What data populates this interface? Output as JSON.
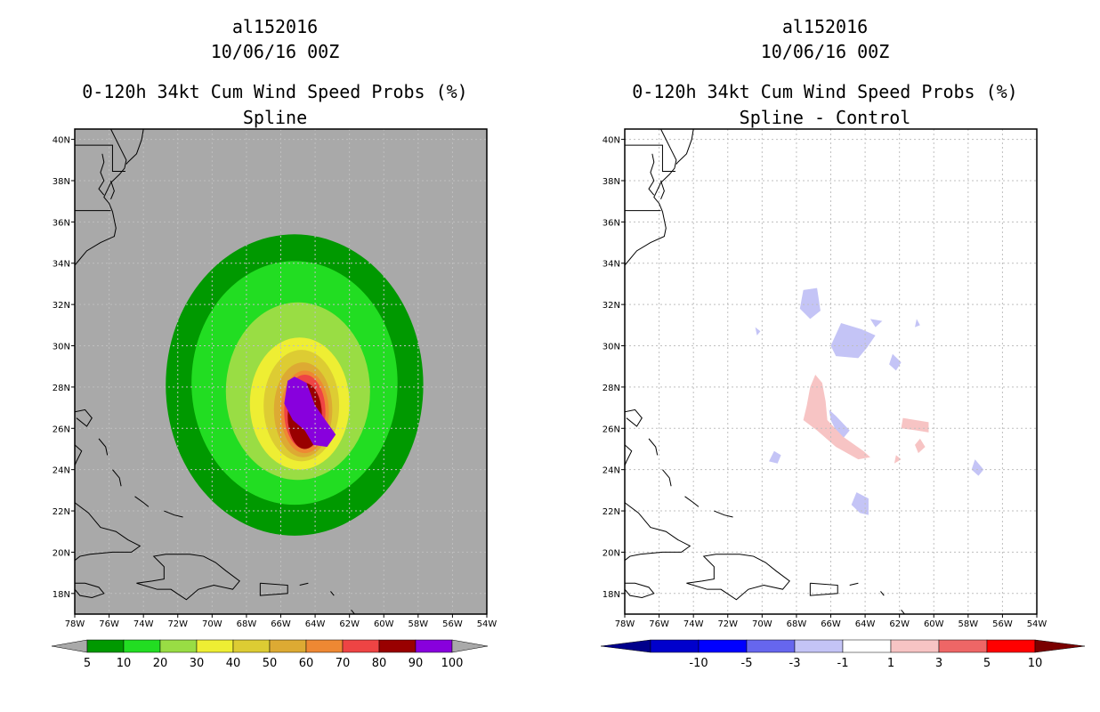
{
  "panels": [
    {
      "title_line1": "al152016",
      "title_line2": "10/06/16 00Z",
      "title_line3": "0-120h 34kt Cum Wind Speed Probs (%)",
      "title_line4": "Spline"
    },
    {
      "title_line1": "al152016",
      "title_line2": "10/06/16 00Z",
      "title_line3": "0-120h 34kt Cum Wind Speed Probs (%)",
      "title_line4": "Spline - Control"
    }
  ],
  "colors": {
    "background_ocean": "#a9a9a9",
    "grid": "#bfbfbf",
    "coast": "#000000"
  },
  "chart_data": [
    {
      "type": "heatmap",
      "name": "spline",
      "x_range": [
        -78,
        -54
      ],
      "y_range": [
        17,
        40.5
      ],
      "x_ticks": [
        "78W",
        "76W",
        "74W",
        "72W",
        "70W",
        "68W",
        "66W",
        "64W",
        "62W",
        "60W",
        "58W",
        "56W",
        "54W"
      ],
      "y_ticks": [
        "18N",
        "20N",
        "22N",
        "24N",
        "26N",
        "28N",
        "30N",
        "32N",
        "34N",
        "36N",
        "38N",
        "40N"
      ],
      "legend": {
        "labels": [
          "5",
          "10",
          "20",
          "30",
          "40",
          "50",
          "60",
          "70",
          "80",
          "90",
          "100"
        ],
        "colors": [
          "#009900",
          "#22dd22",
          "#99dd44",
          "#eeee33",
          "#ddcc33",
          "#ddaa33",
          "#ee8833",
          "#ee4444",
          "#990000",
          "#8800dd"
        ],
        "extend_color": "#a9a9a9"
      },
      "contours": [
        {
          "level": 5,
          "color": "#009900",
          "center": [
            -65.2,
            28.1
          ],
          "rx": 7.5,
          "ry": 7.3
        },
        {
          "level": 10,
          "color": "#22dd22",
          "center": [
            -65.2,
            28.2
          ],
          "rx": 6.0,
          "ry": 5.9
        },
        {
          "level": 20,
          "color": "#99dd44",
          "center": [
            -65.0,
            27.8
          ],
          "rx": 4.2,
          "ry": 4.3
        },
        {
          "level": 30,
          "color": "#eeee33",
          "center": [
            -64.9,
            27.2
          ],
          "rx": 2.9,
          "ry": 3.2
        },
        {
          "level": 40,
          "color": "#ddcc33",
          "center": [
            -64.8,
            27.1
          ],
          "rx": 2.2,
          "ry": 2.7
        },
        {
          "level": 50,
          "color": "#ddaa33",
          "center": [
            -64.7,
            26.9
          ],
          "rx": 1.7,
          "ry": 2.3
        },
        {
          "level": 60,
          "color": "#ee8833",
          "center": [
            -64.6,
            26.8
          ],
          "rx": 1.4,
          "ry": 2.0
        },
        {
          "level": 70,
          "color": "#ee4444",
          "center": [
            -64.6,
            26.8
          ],
          "rx": 1.2,
          "ry": 1.8
        },
        {
          "level": 80,
          "color": "#990000",
          "center": [
            -64.6,
            26.6
          ],
          "rx": 1.0,
          "ry": 1.6
        }
      ],
      "core_polygon": {
        "level": 90,
        "color": "#8800dd",
        "points": [
          [
            -65.6,
            28.3
          ],
          [
            -65.2,
            28.5
          ],
          [
            -64.5,
            28.2
          ],
          [
            -64.0,
            27.1
          ],
          [
            -63.4,
            26.4
          ],
          [
            -62.8,
            25.7
          ],
          [
            -63.3,
            25.1
          ],
          [
            -64.1,
            25.2
          ],
          [
            -64.6,
            25.9
          ],
          [
            -65.3,
            26.4
          ],
          [
            -65.8,
            27.2
          ]
        ]
      }
    },
    {
      "type": "heatmap",
      "name": "spline_minus_control",
      "x_range": [
        -78,
        -54
      ],
      "y_range": [
        17,
        40.5
      ],
      "x_ticks": [
        "78W",
        "76W",
        "74W",
        "72W",
        "70W",
        "68W",
        "66W",
        "64W",
        "62W",
        "60W",
        "58W",
        "56W",
        "54W"
      ],
      "y_ticks": [
        "18N",
        "20N",
        "22N",
        "24N",
        "26N",
        "28N",
        "30N",
        "32N",
        "34N",
        "36N",
        "38N",
        "40N"
      ],
      "legend": {
        "labels": [
          "-10",
          "-5",
          "-3",
          "-1",
          "1",
          "3",
          "5",
          "10"
        ],
        "colors": [
          "#0000cc",
          "#0000ff",
          "#6666ee",
          "#c4c4f6",
          "#ffffff",
          "#f7c4c4",
          "#ee6666",
          "#ff0000",
          "#cc0000"
        ],
        "extend_low_color": "#00008b",
        "extend_high_color": "#7a0000"
      },
      "negative_patches": [
        {
          "level": -1,
          "points": [
            [
              -67.6,
              32.7
            ],
            [
              -66.8,
              32.8
            ],
            [
              -66.6,
              31.7
            ],
            [
              -67.2,
              31.3
            ],
            [
              -67.8,
              31.8
            ]
          ]
        },
        {
          "level": -1,
          "points": [
            [
              -65.4,
              31.1
            ],
            [
              -64.2,
              30.8
            ],
            [
              -63.4,
              30.5
            ],
            [
              -63.9,
              29.9
            ],
            [
              -64.4,
              29.4
            ],
            [
              -65.7,
              29.5
            ],
            [
              -66.0,
              30.0
            ]
          ]
        },
        {
          "level": -1,
          "points": [
            [
              -62.4,
              29.6
            ],
            [
              -61.9,
              29.2
            ],
            [
              -62.2,
              28.8
            ],
            [
              -62.6,
              29.1
            ]
          ]
        },
        {
          "level": -1,
          "points": [
            [
              -66.1,
              26.9
            ],
            [
              -65.7,
              26.6
            ],
            [
              -64.9,
              25.9
            ],
            [
              -65.4,
              25.4
            ],
            [
              -65.7,
              25.9
            ],
            [
              -66.0,
              26.4
            ]
          ]
        },
        {
          "level": -1,
          "points": [
            [
              -69.3,
              24.9
            ],
            [
              -68.9,
              24.7
            ],
            [
              -69.1,
              24.3
            ],
            [
              -69.6,
              24.4
            ]
          ]
        },
        {
          "level": -1,
          "points": [
            [
              -57.6,
              24.5
            ],
            [
              -57.1,
              24.0
            ],
            [
              -57.4,
              23.7
            ],
            [
              -57.8,
              24.0
            ]
          ]
        },
        {
          "level": -1,
          "points": [
            [
              -64.5,
              22.9
            ],
            [
              -63.8,
              22.6
            ],
            [
              -63.8,
              21.8
            ],
            [
              -64.3,
              21.9
            ],
            [
              -64.8,
              22.3
            ]
          ]
        },
        {
          "level": -1,
          "points": [
            [
              -70.4,
              30.9
            ],
            [
              -70.1,
              30.7
            ],
            [
              -70.3,
              30.5
            ]
          ]
        },
        {
          "level": -1,
          "points": [
            [
              -61.0,
              31.3
            ],
            [
              -60.8,
              31.0
            ],
            [
              -61.1,
              30.9
            ]
          ]
        },
        {
          "level": -1,
          "points": [
            [
              -63.7,
              31.3
            ],
            [
              -63.0,
              31.2
            ],
            [
              -63.4,
              30.9
            ]
          ]
        }
      ],
      "positive_patches": [
        {
          "level": 1,
          "points": [
            [
              -66.9,
              28.6
            ],
            [
              -66.5,
              28.2
            ],
            [
              -66.3,
              27.3
            ],
            [
              -66.2,
              26.4
            ],
            [
              -65.3,
              25.6
            ],
            [
              -64.1,
              24.9
            ],
            [
              -63.7,
              24.6
            ],
            [
              -64.4,
              24.5
            ],
            [
              -65.7,
              25.1
            ],
            [
              -66.8,
              25.9
            ],
            [
              -67.6,
              26.4
            ],
            [
              -67.4,
              27.1
            ],
            [
              -67.2,
              28.0
            ]
          ]
        },
        {
          "level": 1,
          "points": [
            [
              -61.8,
              26.5
            ],
            [
              -60.3,
              26.3
            ],
            [
              -60.3,
              25.8
            ],
            [
              -61.0,
              25.9
            ],
            [
              -61.9,
              26.0
            ]
          ]
        },
        {
          "level": 1,
          "points": [
            [
              -62.2,
              24.7
            ],
            [
              -61.9,
              24.5
            ],
            [
              -62.3,
              24.3
            ]
          ]
        },
        {
          "level": 1,
          "points": [
            [
              -60.8,
              25.5
            ],
            [
              -60.5,
              25.1
            ],
            [
              -60.9,
              24.8
            ],
            [
              -61.1,
              25.2
            ]
          ]
        }
      ]
    }
  ]
}
